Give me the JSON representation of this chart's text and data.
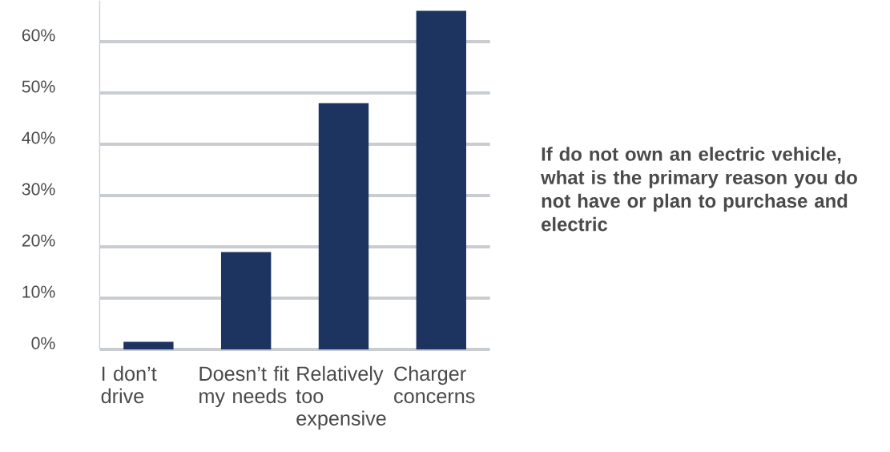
{
  "chart_data": {
    "type": "bar",
    "title": "If do not own an electric vehicle, what is the primary reason you do not have or plan to purchase and electric",
    "categories": [
      "I don’t drive",
      "Doesn’t fit my needs",
      "Relatively too expensive",
      "Charger concerns"
    ],
    "values": [
      1.5,
      19,
      48,
      66
    ],
    "color": "#1d3461",
    "ylim": [
      0,
      68
    ],
    "yticks": [
      {
        "value": 0,
        "label": "0%"
      },
      {
        "value": 10,
        "label": "10%"
      },
      {
        "value": 20,
        "label": "20%"
      },
      {
        "value": 30,
        "label": "30%"
      },
      {
        "value": 40,
        "label": "40%"
      },
      {
        "value": 50,
        "label": "50%"
      },
      {
        "value": 60,
        "label": "60%"
      }
    ],
    "grid": "y"
  }
}
